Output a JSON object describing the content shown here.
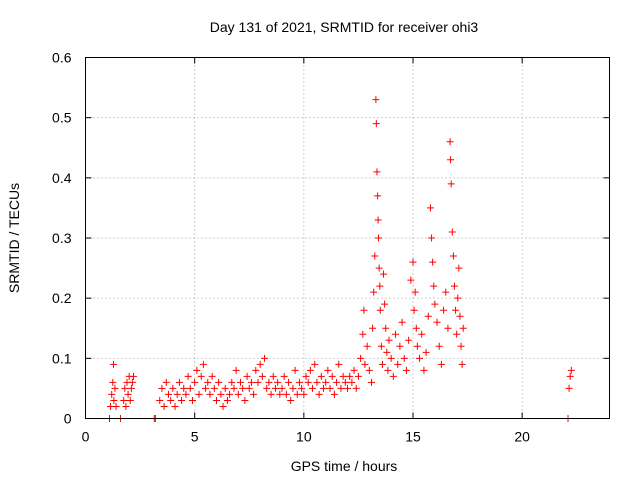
{
  "chart_data": {
    "type": "scatter",
    "title": "Day 131 of 2021, SRMTID for receiver ohi3",
    "xlabel": "GPS time / hours",
    "ylabel": "SRMTID / TECUs",
    "xlim": [
      0,
      24
    ],
    "ylim": [
      0,
      0.6
    ],
    "xticks": [
      0,
      5,
      10,
      15,
      20
    ],
    "yticks": [
      0,
      0.1,
      0.2,
      0.3,
      0.4,
      0.5,
      0.6
    ],
    "xtick_labels": [
      "0",
      "5",
      "10",
      "15",
      "20"
    ],
    "ytick_labels": [
      "0",
      "0.1",
      "0.2",
      "0.3",
      "0.4",
      "0.5",
      "0.6"
    ],
    "grid": true,
    "marker": "+",
    "color": "#ff0000",
    "series": [
      {
        "name": "SRMTID",
        "points": [
          [
            1.1,
            0.0
          ],
          [
            1.15,
            0.02
          ],
          [
            1.2,
            0.04
          ],
          [
            1.25,
            0.06
          ],
          [
            1.28,
            0.09
          ],
          [
            1.3,
            0.03
          ],
          [
            1.35,
            0.05
          ],
          [
            1.4,
            0.02
          ],
          [
            1.6,
            0.0
          ],
          [
            1.75,
            0.03
          ],
          [
            1.8,
            0.05
          ],
          [
            1.85,
            0.02
          ],
          [
            1.9,
            0.06
          ],
          [
            1.95,
            0.04
          ],
          [
            2.0,
            0.07
          ],
          [
            2.05,
            0.03
          ],
          [
            2.1,
            0.05
          ],
          [
            2.15,
            0.06
          ],
          [
            2.2,
            0.07
          ],
          [
            3.15,
            0.0
          ],
          [
            3.2,
            0.0
          ],
          [
            3.4,
            0.03
          ],
          [
            3.5,
            0.05
          ],
          [
            3.6,
            0.02
          ],
          [
            3.7,
            0.06
          ],
          [
            3.8,
            0.04
          ],
          [
            3.9,
            0.03
          ],
          [
            4.0,
            0.05
          ],
          [
            4.1,
            0.02
          ],
          [
            4.2,
            0.04
          ],
          [
            4.3,
            0.06
          ],
          [
            4.4,
            0.03
          ],
          [
            4.5,
            0.05
          ],
          [
            4.6,
            0.04
          ],
          [
            4.7,
            0.07
          ],
          [
            4.8,
            0.05
          ],
          [
            4.9,
            0.03
          ],
          [
            5.0,
            0.06
          ],
          [
            5.1,
            0.08
          ],
          [
            5.2,
            0.04
          ],
          [
            5.3,
            0.07
          ],
          [
            5.4,
            0.09
          ],
          [
            5.5,
            0.05
          ],
          [
            5.6,
            0.06
          ],
          [
            5.7,
            0.04
          ],
          [
            5.8,
            0.07
          ],
          [
            5.9,
            0.05
          ],
          [
            6.0,
            0.03
          ],
          [
            6.1,
            0.06
          ],
          [
            6.2,
            0.04
          ],
          [
            6.3,
            0.02
          ],
          [
            6.4,
            0.05
          ],
          [
            6.5,
            0.03
          ],
          [
            6.6,
            0.04
          ],
          [
            6.7,
            0.06
          ],
          [
            6.8,
            0.05
          ],
          [
            6.9,
            0.08
          ],
          [
            7.0,
            0.04
          ],
          [
            7.1,
            0.06
          ],
          [
            7.2,
            0.05
          ],
          [
            7.3,
            0.03
          ],
          [
            7.4,
            0.07
          ],
          [
            7.5,
            0.05
          ],
          [
            7.6,
            0.06
          ],
          [
            7.7,
            0.04
          ],
          [
            7.8,
            0.08
          ],
          [
            7.9,
            0.06
          ],
          [
            8.0,
            0.09
          ],
          [
            8.1,
            0.07
          ],
          [
            8.2,
            0.1
          ],
          [
            8.3,
            0.05
          ],
          [
            8.4,
            0.06
          ],
          [
            8.5,
            0.04
          ],
          [
            8.6,
            0.07
          ],
          [
            8.7,
            0.05
          ],
          [
            8.8,
            0.06
          ],
          [
            8.9,
            0.04
          ],
          [
            9.0,
            0.05
          ],
          [
            9.1,
            0.07
          ],
          [
            9.2,
            0.04
          ],
          [
            9.3,
            0.06
          ],
          [
            9.4,
            0.03
          ],
          [
            9.5,
            0.05
          ],
          [
            9.6,
            0.08
          ],
          [
            9.7,
            0.04
          ],
          [
            9.8,
            0.06
          ],
          [
            9.9,
            0.05
          ],
          [
            10.0,
            0.04
          ],
          [
            10.1,
            0.07
          ],
          [
            10.2,
            0.06
          ],
          [
            10.3,
            0.08
          ],
          [
            10.4,
            0.05
          ],
          [
            10.5,
            0.09
          ],
          [
            10.6,
            0.06
          ],
          [
            10.7,
            0.04
          ],
          [
            10.8,
            0.07
          ],
          [
            10.9,
            0.05
          ],
          [
            11.0,
            0.06
          ],
          [
            11.1,
            0.08
          ],
          [
            11.2,
            0.05
          ],
          [
            11.3,
            0.07
          ],
          [
            11.4,
            0.04
          ],
          [
            11.5,
            0.06
          ],
          [
            11.6,
            0.09
          ],
          [
            11.7,
            0.05
          ],
          [
            11.8,
            0.07
          ],
          [
            11.9,
            0.06
          ],
          [
            12.0,
            0.05
          ],
          [
            12.1,
            0.07
          ],
          [
            12.2,
            0.06
          ],
          [
            12.3,
            0.08
          ],
          [
            12.4,
            0.05
          ],
          [
            12.5,
            0.07
          ],
          [
            12.6,
            0.1
          ],
          [
            12.7,
            0.14
          ],
          [
            12.75,
            0.18
          ],
          [
            12.8,
            0.09
          ],
          [
            12.9,
            0.12
          ],
          [
            13.0,
            0.08
          ],
          [
            13.1,
            0.06
          ],
          [
            13.15,
            0.15
          ],
          [
            13.2,
            0.21
          ],
          [
            13.25,
            0.27
          ],
          [
            13.3,
            0.53
          ],
          [
            13.32,
            0.49
          ],
          [
            13.35,
            0.41
          ],
          [
            13.38,
            0.37
          ],
          [
            13.4,
            0.33
          ],
          [
            13.42,
            0.3
          ],
          [
            13.45,
            0.25
          ],
          [
            13.48,
            0.22
          ],
          [
            13.5,
            0.18
          ],
          [
            13.55,
            0.12
          ],
          [
            13.6,
            0.09
          ],
          [
            13.65,
            0.24
          ],
          [
            13.7,
            0.19
          ],
          [
            13.75,
            0.15
          ],
          [
            13.8,
            0.11
          ],
          [
            13.85,
            0.08
          ],
          [
            13.9,
            0.13
          ],
          [
            14.0,
            0.1
          ],
          [
            14.1,
            0.07
          ],
          [
            14.2,
            0.14
          ],
          [
            14.3,
            0.09
          ],
          [
            14.4,
            0.12
          ],
          [
            14.5,
            0.16
          ],
          [
            14.6,
            0.1
          ],
          [
            14.7,
            0.08
          ],
          [
            14.8,
            0.13
          ],
          [
            14.9,
            0.23
          ],
          [
            15.0,
            0.26
          ],
          [
            15.05,
            0.18
          ],
          [
            15.1,
            0.21
          ],
          [
            15.15,
            0.15
          ],
          [
            15.2,
            0.12
          ],
          [
            15.3,
            0.1
          ],
          [
            15.4,
            0.14
          ],
          [
            15.5,
            0.08
          ],
          [
            15.6,
            0.11
          ],
          [
            15.7,
            0.17
          ],
          [
            15.8,
            0.35
          ],
          [
            15.85,
            0.3
          ],
          [
            15.9,
            0.26
          ],
          [
            15.95,
            0.22
          ],
          [
            16.0,
            0.19
          ],
          [
            16.1,
            0.16
          ],
          [
            16.2,
            0.12
          ],
          [
            16.3,
            0.09
          ],
          [
            16.4,
            0.18
          ],
          [
            16.5,
            0.21
          ],
          [
            16.6,
            0.15
          ],
          [
            16.7,
            0.46
          ],
          [
            16.72,
            0.43
          ],
          [
            16.75,
            0.39
          ],
          [
            16.8,
            0.31
          ],
          [
            16.85,
            0.27
          ],
          [
            16.9,
            0.22
          ],
          [
            16.95,
            0.18
          ],
          [
            17.0,
            0.14
          ],
          [
            17.05,
            0.2
          ],
          [
            17.1,
            0.25
          ],
          [
            17.15,
            0.17
          ],
          [
            17.2,
            0.12
          ],
          [
            17.25,
            0.09
          ],
          [
            17.3,
            0.15
          ],
          [
            22.1,
            0.0
          ],
          [
            22.15,
            0.05
          ],
          [
            22.2,
            0.07
          ],
          [
            22.25,
            0.08
          ]
        ]
      }
    ]
  }
}
